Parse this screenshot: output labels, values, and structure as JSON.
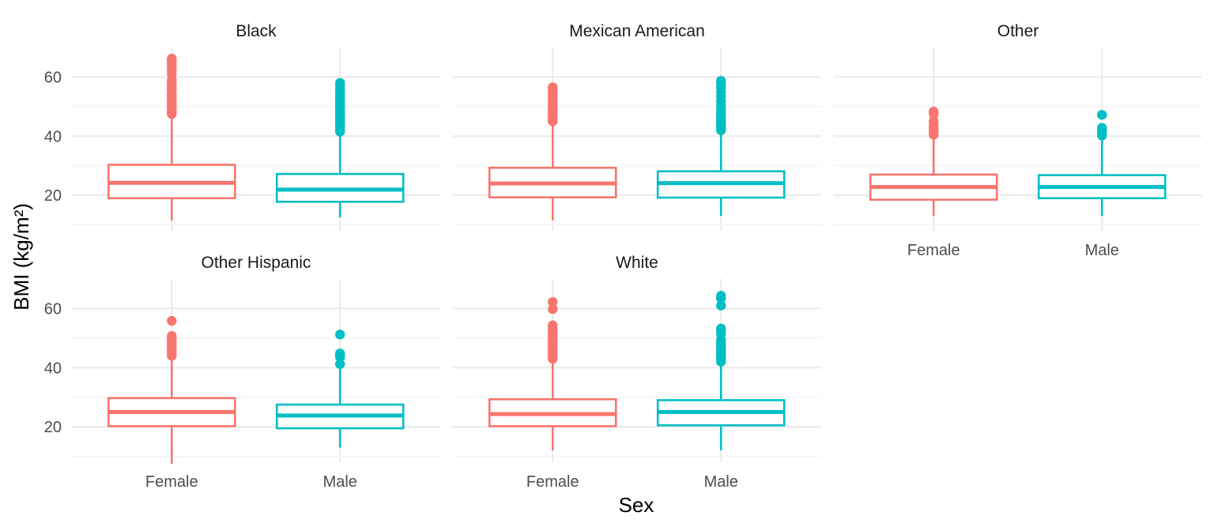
{
  "chart_data": {
    "type": "boxplot",
    "xlabel": "Sex",
    "ylabel": "BMI (kg/m²)",
    "ylim": [
      8,
      70
    ],
    "y_ticks": [
      20,
      40,
      60
    ],
    "grid": true,
    "legend": "none",
    "categories": [
      "Female",
      "Male"
    ],
    "colors": {
      "Female": "#F8766D",
      "Male": "#00BFC4"
    },
    "panels": [
      {
        "name": "Black",
        "boxes": [
          {
            "group": "Female",
            "whisker_low": 11.5,
            "q1": 19.0,
            "median": 24.2,
            "q3": 30.3,
            "whisker_high": 47.0,
            "outliers": [
              47.5,
              48.2,
              49.0,
              49.8,
              50.5,
              51.2,
              52.0,
              52.8,
              53.5,
              54.2,
              55.5,
              56.3,
              57.0,
              57.8,
              59.0,
              61.0,
              62.5,
              63.5,
              64.5,
              65.5,
              66.2
            ]
          },
          {
            "group": "Male",
            "whisker_low": 12.5,
            "q1": 17.8,
            "median": 21.9,
            "q3": 27.2,
            "whisker_high": 41.0,
            "outliers": [
              41.5,
              42.2,
              43.0,
              43.8,
              44.5,
              45.3,
              46.0,
              46.8,
              47.5,
              48.3,
              49.0,
              49.8,
              50.5,
              51.3,
              52.0,
              53.0,
              54.0,
              55.0,
              56.0,
              57.0,
              58.0
            ]
          }
        ]
      },
      {
        "name": "Mexican American",
        "boxes": [
          {
            "group": "Female",
            "whisker_low": 11.5,
            "q1": 19.3,
            "median": 24.0,
            "q3": 29.3,
            "whisker_high": 44.5,
            "outliers": [
              45.0,
              45.8,
              46.5,
              47.3,
              48.0,
              48.8,
              49.5,
              50.3,
              51.0,
              52.0,
              53.0,
              54.0,
              55.0,
              56.0,
              56.5
            ]
          },
          {
            "group": "Male",
            "whisker_low": 13.0,
            "q1": 19.2,
            "median": 24.1,
            "q3": 28.1,
            "whisker_high": 41.5,
            "outliers": [
              42.0,
              42.8,
              43.5,
              44.3,
              45.0,
              46.0,
              47.0,
              48.0,
              49.0,
              50.5,
              52.0,
              53.5,
              55.0,
              56.5,
              58.0,
              58.7
            ]
          }
        ]
      },
      {
        "name": "Other",
        "boxes": [
          {
            "group": "Female",
            "whisker_low": 13.0,
            "q1": 18.5,
            "median": 22.8,
            "q3": 27.0,
            "whisker_high": 40.0,
            "outliers": [
              40.5,
              41.5,
              42.5,
              43.5,
              45.0,
              47.5,
              48.3
            ]
          },
          {
            "group": "Male",
            "whisker_low": 13.0,
            "q1": 19.0,
            "median": 22.8,
            "q3": 26.8,
            "whisker_high": 39.5,
            "outliers": [
              40.2,
              41.0,
              42.0,
              42.8,
              47.2
            ]
          }
        ]
      },
      {
        "name": "Other Hispanic",
        "boxes": [
          {
            "group": "Female",
            "whisker_low": 7.5,
            "q1": 20.2,
            "median": 25.0,
            "q3": 29.7,
            "whisker_high": 43.5,
            "outliers": [
              44.0,
              45.0,
              46.0,
              47.0,
              48.0,
              49.0,
              50.0,
              50.7,
              55.8
            ]
          },
          {
            "group": "Male",
            "whisker_low": 13.0,
            "q1": 19.5,
            "median": 23.8,
            "q3": 27.5,
            "whisker_high": 40.5,
            "outliers": [
              41.2,
              43.5,
              44.2,
              44.8,
              51.2
            ]
          }
        ]
      },
      {
        "name": "White",
        "boxes": [
          {
            "group": "Female",
            "whisker_low": 12.0,
            "q1": 20.2,
            "median": 24.3,
            "q3": 29.3,
            "whisker_high": 42.5,
            "outliers": [
              43.0,
              43.7,
              44.4,
              45.1,
              45.8,
              46.5,
              47.2,
              47.9,
              48.6,
              49.3,
              50.0,
              50.8,
              51.6,
              52.5,
              53.5,
              54.3,
              59.8,
              62.2
            ]
          },
          {
            "group": "Male",
            "whisker_low": 12.0,
            "q1": 20.5,
            "median": 25.0,
            "q3": 29.0,
            "whisker_high": 41.5,
            "outliers": [
              42.0,
              42.8,
              43.5,
              44.3,
              45.0,
              45.8,
              46.5,
              47.5,
              48.5,
              49.5,
              51.5,
              52.5,
              53.2,
              61.0,
              63.5,
              64.3
            ]
          }
        ]
      }
    ]
  }
}
